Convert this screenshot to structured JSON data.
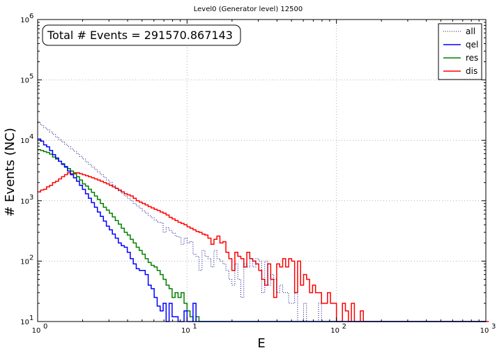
{
  "chart_data": {
    "type": "line",
    "title": "Level0 (Generator level) 12500",
    "xlabel": "E",
    "ylabel": "# Events (NC)",
    "xscale": "log",
    "yscale": "log",
    "xlim": [
      1,
      1000
    ],
    "ylim": [
      10,
      1000000
    ],
    "grid": true,
    "legend_position": "top-right",
    "annotation": "Total # Events = 291570.867143",
    "x_ticks": [
      {
        "base": "10",
        "exp": "0",
        "value": 1
      },
      {
        "base": "10",
        "exp": "1",
        "value": 10
      },
      {
        "base": "10",
        "exp": "2",
        "value": 100
      },
      {
        "base": "10",
        "exp": "3",
        "value": 1000
      }
    ],
    "y_ticks": [
      {
        "base": "10",
        "exp": "1",
        "value": 10
      },
      {
        "base": "10",
        "exp": "2",
        "value": 100
      },
      {
        "base": "10",
        "exp": "3",
        "value": 1000
      },
      {
        "base": "10",
        "exp": "4",
        "value": 10000
      },
      {
        "base": "10",
        "exp": "5",
        "value": 100000
      },
      {
        "base": "10",
        "exp": "6",
        "value": 1000000
      }
    ],
    "bins": {
      "min": 1,
      "max": 1000,
      "count": 150
    },
    "series": [
      {
        "name": "all",
        "color": "#000080",
        "style": "dotted",
        "values": [
          19500,
          17800,
          16300,
          15000,
          13800,
          12500,
          11300,
          10300,
          9400,
          8600,
          7900,
          7200,
          6600,
          6000,
          5400,
          4900,
          4400,
          4000,
          3600,
          3300,
          3000,
          2700,
          2450,
          2200,
          2000,
          1800,
          1620,
          1460,
          1320,
          1200,
          1100,
          1000,
          900,
          820,
          750,
          680,
          620,
          570,
          520,
          480,
          440,
          430,
          300,
          360,
          320,
          290,
          260,
          250,
          190,
          240,
          200,
          210,
          130,
          120,
          70,
          150,
          120,
          110,
          80,
          150,
          110,
          100,
          90,
          70,
          50,
          40,
          90,
          50,
          25,
          90,
          80,
          110,
          80,
          110,
          100,
          30,
          100,
          40,
          60,
          50,
          30,
          40,
          30,
          30,
          20,
          20,
          30,
          10,
          10,
          20,
          10,
          10,
          10,
          10,
          20,
          10,
          10,
          10,
          10,
          10,
          10,
          10,
          10,
          10,
          10,
          10,
          10,
          10,
          10,
          10,
          10,
          10,
          10,
          10,
          10,
          10,
          10,
          10,
          10,
          10,
          10,
          10,
          10,
          10,
          10,
          10,
          10,
          10,
          10,
          10,
          10,
          10,
          10,
          10,
          10,
          10,
          10,
          10,
          10,
          10,
          10,
          10,
          10,
          10,
          10,
          10,
          10,
          10
        ]
      },
      {
        "name": "qel",
        "color": "#0000ff",
        "style": "solid",
        "values": [
          10500,
          9700,
          8400,
          7800,
          6800,
          5800,
          5100,
          4500,
          4000,
          3600,
          3100,
          2700,
          2400,
          2100,
          1800,
          1540,
          1300,
          1100,
          930,
          780,
          650,
          550,
          460,
          380,
          330,
          280,
          240,
          200,
          180,
          170,
          140,
          110,
          90,
          75,
          70,
          70,
          60,
          40,
          35,
          25,
          18,
          15,
          20,
          10,
          20,
          12,
          12,
          10,
          10,
          15,
          10,
          10,
          20,
          10,
          10,
          10,
          10,
          10,
          10,
          10,
          10,
          10,
          10,
          10,
          10,
          10,
          10,
          10,
          10,
          10,
          10,
          10,
          10,
          10,
          10,
          10,
          10,
          10,
          10,
          10,
          10,
          10,
          10,
          10,
          10,
          10,
          10,
          10,
          10,
          10,
          10,
          10,
          10,
          10,
          10,
          10,
          10,
          10,
          10,
          10,
          10,
          10,
          10,
          10,
          10,
          10,
          10,
          10,
          10,
          10,
          10,
          10,
          10,
          10,
          10,
          10,
          10,
          10,
          10,
          10,
          10,
          10,
          10,
          10,
          10,
          10,
          10,
          10,
          10,
          10,
          10,
          10,
          10,
          10,
          10,
          10,
          10,
          10,
          10,
          10,
          10,
          10,
          10,
          10,
          10,
          10,
          10,
          10,
          10,
          10
        ]
      },
      {
        "name": "res",
        "color": "#008000",
        "style": "solid",
        "values": [
          7000,
          6800,
          6500,
          6300,
          5900,
          5300,
          4900,
          4500,
          4100,
          3700,
          3400,
          3100,
          2800,
          2500,
          2200,
          1900,
          1750,
          1550,
          1380,
          1200,
          1050,
          900,
          780,
          700,
          620,
          540,
          470,
          410,
          350,
          300,
          270,
          230,
          200,
          170,
          150,
          130,
          110,
          95,
          85,
          80,
          70,
          60,
          50,
          40,
          35,
          25,
          30,
          25,
          30,
          20,
          15,
          12,
          10,
          12,
          10,
          10,
          10,
          10,
          10,
          10,
          10,
          10,
          10,
          10,
          10,
          10,
          10,
          10,
          10,
          10,
          10,
          10,
          10,
          10,
          10,
          10,
          10,
          10,
          10,
          10,
          10,
          10,
          10,
          10,
          10,
          10,
          10,
          10,
          10,
          10,
          10,
          10,
          10,
          10,
          10,
          10,
          10,
          10,
          10,
          10,
          10,
          10,
          10,
          10,
          10,
          10,
          10,
          10,
          10,
          10,
          10,
          10,
          10,
          10,
          10,
          10,
          10,
          10,
          10,
          10,
          10,
          10,
          10,
          10,
          10,
          10,
          10,
          10,
          10,
          10,
          10,
          10,
          10,
          10,
          10,
          10,
          10,
          10,
          10,
          10,
          10,
          10,
          10,
          10,
          10,
          10,
          10,
          10,
          10,
          10
        ]
      },
      {
        "name": "dis",
        "color": "#ff0000",
        "style": "solid",
        "values": [
          1400,
          1500,
          1550,
          1700,
          1800,
          2000,
          2100,
          2300,
          2500,
          2700,
          2900,
          2800,
          2900,
          2900,
          2800,
          2700,
          2600,
          2500,
          2400,
          2300,
          2200,
          2100,
          2000,
          1900,
          1800,
          1700,
          1600,
          1500,
          1400,
          1300,
          1250,
          1200,
          1100,
          1000,
          950,
          900,
          850,
          800,
          760,
          720,
          690,
          650,
          620,
          580,
          530,
          500,
          470,
          440,
          420,
          400,
          370,
          350,
          330,
          310,
          300,
          280,
          270,
          240,
          190,
          230,
          260,
          200,
          210,
          140,
          110,
          70,
          140,
          120,
          110,
          80,
          140,
          110,
          100,
          90,
          70,
          50,
          40,
          90,
          50,
          25,
          90,
          80,
          110,
          80,
          110,
          100,
          30,
          100,
          40,
          60,
          50,
          30,
          40,
          30,
          30,
          20,
          20,
          30,
          20,
          20,
          10,
          10,
          20,
          15,
          10,
          20,
          10,
          10,
          15,
          10,
          10,
          10,
          10,
          10,
          10,
          10,
          10,
          10,
          10,
          10,
          10,
          10,
          10,
          10,
          10,
          10,
          10,
          10,
          10,
          10,
          10,
          10,
          10,
          10,
          10,
          10,
          10,
          10,
          10,
          10,
          10,
          10,
          10,
          10,
          10,
          10,
          10,
          10,
          10,
          10,
          10
        ]
      }
    ]
  }
}
